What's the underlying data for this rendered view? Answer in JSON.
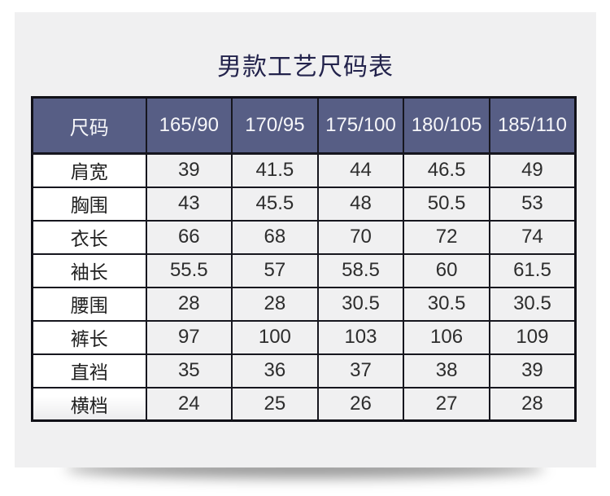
{
  "page": {
    "title": "男款工艺尺码表"
  },
  "chart_data": {
    "type": "table",
    "title": "男款工艺尺码表",
    "columns": [
      "尺码",
      "165/90",
      "170/95",
      "175/100",
      "180/105",
      "185/110"
    ],
    "rows": [
      [
        "肩宽",
        39,
        41.5,
        44,
        46.5,
        49
      ],
      [
        "胸围",
        43,
        45.5,
        48,
        50.5,
        53
      ],
      [
        "衣长",
        66,
        68,
        70,
        72,
        74
      ],
      [
        "袖长",
        55.5,
        57,
        58.5,
        60,
        61.5
      ],
      [
        "腰围",
        28,
        28,
        30.5,
        30.5,
        30.5
      ],
      [
        "裤长",
        97,
        100,
        103,
        106,
        109
      ],
      [
        "直裆",
        35,
        36,
        37,
        38,
        39
      ],
      [
        "横档",
        24,
        25,
        26,
        27,
        28
      ]
    ]
  },
  "colors": {
    "card_background": "#f0f0f1",
    "header_background": "#575e85",
    "header_text": "#f6f6f9",
    "title_text": "#23234c",
    "border": "#16161e",
    "label_cell_background": "#ffffff",
    "value_cell_background": "#f0f0f1"
  }
}
